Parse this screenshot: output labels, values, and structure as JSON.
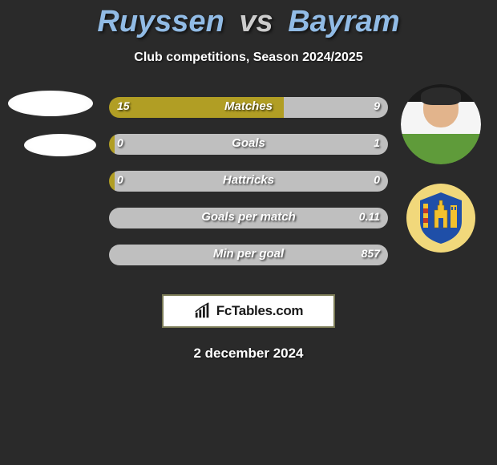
{
  "title": {
    "player1": "Ruyssen",
    "vs": "vs",
    "player2": "Bayram"
  },
  "subtitle": "Club competitions, Season 2024/2025",
  "date": "2 december 2024",
  "watermark": "FcTables.com",
  "colors": {
    "background": "#2a2a2a",
    "title_player": "#91BBE5",
    "title_vs": "#cccccc",
    "bar_yellow": "#b19e24",
    "bar_gray": "#bfbfbf",
    "text": "#ffffff",
    "wm_border": "#7a7a55"
  },
  "rows": [
    {
      "label": "Matches",
      "left_val": "15",
      "right_val": "9",
      "left_pct": 62.5,
      "left_color": "#b19e24",
      "right_color": "#bfbfbf"
    },
    {
      "label": "Goals",
      "left_val": "0",
      "right_val": "1",
      "left_pct": 2.0,
      "left_color": "#b19e24",
      "right_color": "#bfbfbf"
    },
    {
      "label": "Hattricks",
      "left_val": "0",
      "right_val": "0",
      "left_pct": 2.0,
      "left_color": "#b19e24",
      "right_color": "#bfbfbf"
    },
    {
      "label": "Goals per match",
      "left_val": "",
      "right_val": "0.11",
      "left_pct": 0.0,
      "left_color": "#bfbfbf",
      "right_color": "#bfbfbf"
    },
    {
      "label": "Min per goal",
      "left_val": "",
      "right_val": "857",
      "left_pct": 0.0,
      "left_color": "#bfbfbf",
      "right_color": "#bfbfbf"
    }
  ],
  "crest_colors": {
    "shield": "#1f4fa8",
    "castle": "#f2c12e",
    "stripes_red": "#c0392b",
    "stripes_gold": "#f2c12e",
    "bg": "#f1d87b"
  }
}
